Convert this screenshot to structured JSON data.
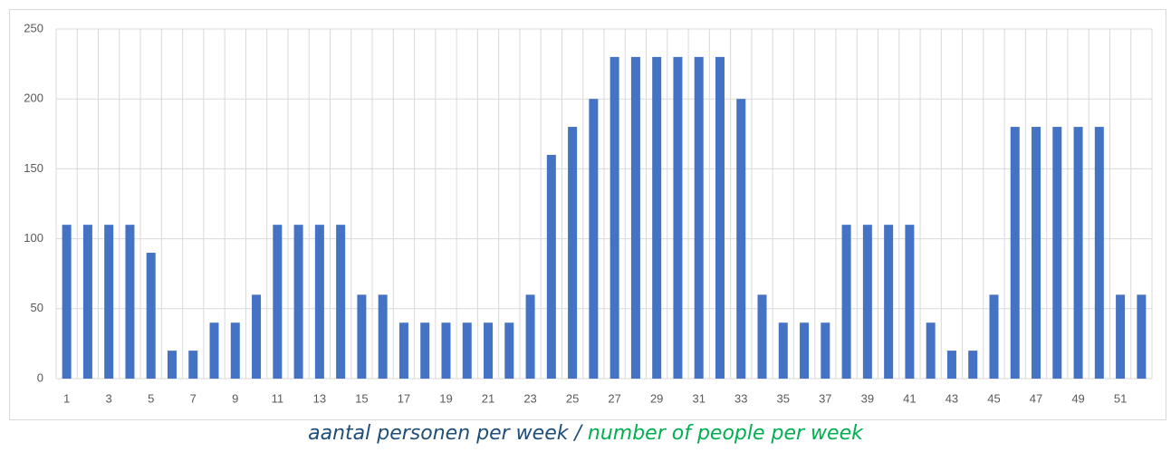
{
  "chart_data": {
    "type": "bar",
    "categories": [
      "1",
      null,
      "3",
      null,
      "5",
      null,
      "7",
      null,
      "9",
      null,
      "11",
      null,
      "13",
      null,
      "15",
      null,
      "17",
      null,
      "19",
      null,
      "21",
      null,
      "23",
      null,
      "25",
      null,
      "27",
      null,
      "29",
      null,
      "31",
      null,
      "33",
      null,
      "35",
      null,
      "37",
      null,
      "39",
      null,
      "41",
      null,
      "43",
      null,
      "45",
      null,
      "47",
      null,
      "49",
      null,
      "51",
      null
    ],
    "values": [
      110,
      110,
      110,
      110,
      90,
      20,
      20,
      40,
      40,
      60,
      110,
      110,
      110,
      110,
      60,
      60,
      40,
      40,
      40,
      40,
      40,
      40,
      60,
      160,
      180,
      200,
      230,
      230,
      230,
      230,
      230,
      230,
      200,
      60,
      40,
      40,
      40,
      110,
      110,
      110,
      110,
      40,
      20,
      20,
      60,
      180,
      180,
      180,
      180,
      180,
      60,
      60
    ],
    "color": "#4472c4",
    "ylim": [
      0,
      250
    ],
    "yticks": [
      0,
      50,
      100,
      150,
      200,
      250
    ],
    "grid": true,
    "caption_nl": "aantal personen per week /",
    "caption_en": "number of people per week"
  }
}
